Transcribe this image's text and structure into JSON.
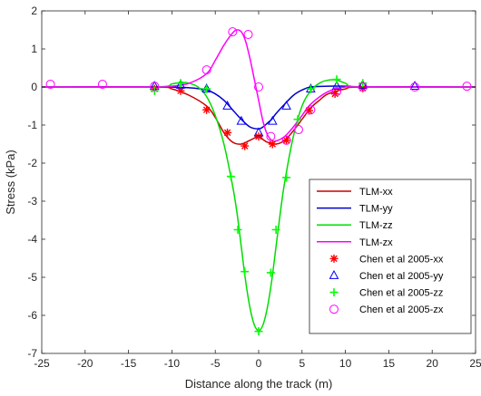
{
  "chart_data": {
    "type": "line",
    "title": "",
    "xlabel": "Distance along the track (m)",
    "ylabel": "Stress (kPa)",
    "xlim": [
      -25,
      25
    ],
    "ylim": [
      -7,
      2
    ],
    "xticks": [
      -25,
      -20,
      -15,
      -10,
      -5,
      0,
      5,
      10,
      15,
      20,
      25
    ],
    "yticks": [
      -7,
      -6,
      -5,
      -4,
      -3,
      -2,
      -1,
      0,
      1,
      2
    ],
    "grid": false,
    "legend_position": "bottom-right",
    "series": [
      {
        "name": "TLM-xx",
        "kind": "line",
        "color": "#cc0000",
        "x": [
          -25,
          -12,
          -10,
          -8,
          -6,
          -5,
          -4,
          -3,
          -2,
          -1,
          0,
          0.5,
          1,
          2,
          3,
          4,
          5,
          6,
          7,
          8,
          10,
          12,
          25
        ],
        "y": [
          0,
          0,
          -0.05,
          -0.22,
          -0.5,
          -0.8,
          -1.2,
          -1.45,
          -1.5,
          -1.4,
          -1.3,
          -1.38,
          -1.45,
          -1.5,
          -1.4,
          -1.15,
          -0.85,
          -0.55,
          -0.35,
          -0.18,
          -0.05,
          0,
          0
        ]
      },
      {
        "name": "TLM-yy",
        "kind": "line",
        "color": "#0000cc",
        "x": [
          -25,
          -12,
          -8,
          -6,
          -5,
          -4,
          -3,
          -2,
          -1,
          0,
          0.5,
          1,
          1.5,
          2,
          3,
          4,
          5,
          6,
          8,
          10,
          12,
          25
        ],
        "y": [
          0,
          0,
          -0.02,
          -0.08,
          -0.18,
          -0.35,
          -0.6,
          -0.85,
          -1.05,
          -1.1,
          -1.05,
          -0.95,
          -0.85,
          -0.7,
          -0.45,
          -0.22,
          -0.08,
          0,
          0.02,
          0.02,
          0,
          0
        ]
      },
      {
        "name": "TLM-zz",
        "kind": "line",
        "color": "#00dd00",
        "x": [
          -25,
          -12,
          -10,
          -9,
          -8,
          -7,
          -6,
          -5,
          -4,
          -3,
          -2.5,
          -2,
          -1.5,
          -1,
          -0.5,
          0,
          0.5,
          1,
          1.5,
          2,
          2.5,
          3,
          4,
          5,
          6,
          7,
          8,
          9,
          10,
          12,
          25
        ],
        "y": [
          0,
          0,
          0.08,
          0.12,
          0.1,
          0,
          -0.25,
          -0.75,
          -1.5,
          -2.6,
          -3.3,
          -4.2,
          -5.1,
          -5.8,
          -6.25,
          -6.4,
          -6.25,
          -5.8,
          -5.1,
          -4.2,
          -3.3,
          -2.5,
          -1.3,
          -0.5,
          -0.1,
          0.1,
          0.18,
          0.18,
          0.1,
          0,
          0
        ]
      },
      {
        "name": "TLM-zx",
        "kind": "line",
        "color": "#ff00ff",
        "x": [
          -25,
          -12,
          -10,
          -8,
          -6,
          -5,
          -4,
          -3,
          -2.5,
          -2,
          -1.5,
          -1,
          -0.5,
          0,
          0.5,
          1,
          1.5,
          2,
          3,
          4,
          5,
          6,
          8,
          10,
          12,
          25
        ],
        "y": [
          0,
          0,
          0.02,
          0.1,
          0.35,
          0.7,
          1.1,
          1.42,
          1.5,
          1.45,
          1.2,
          0.75,
          0.2,
          -0.35,
          -0.9,
          -1.25,
          -1.4,
          -1.42,
          -1.3,
          -1.05,
          -0.75,
          -0.45,
          -0.12,
          0,
          0,
          0
        ]
      },
      {
        "name": "Chen et al 2005-xx",
        "kind": "marker",
        "marker": "asterisk",
        "color": "#ff0000",
        "x": [
          -12,
          -9,
          -6,
          -3.6,
          -1.6,
          0,
          1.6,
          3.2,
          5.8,
          8.8,
          12
        ],
        "y": [
          -0.05,
          -0.1,
          -0.6,
          -1.2,
          -1.55,
          -1.3,
          -1.5,
          -1.4,
          -0.62,
          -0.18,
          -0.03
        ]
      },
      {
        "name": "Chen et al 2005-yy",
        "kind": "marker",
        "marker": "triangle",
        "color": "#0000ff",
        "x": [
          -12,
          -9,
          -6,
          -3.6,
          -2,
          0,
          1.6,
          3.2,
          6,
          9,
          12,
          18
        ],
        "y": [
          0.02,
          0.05,
          -0.05,
          -0.5,
          -0.9,
          -1.2,
          -0.9,
          -0.5,
          -0.05,
          0.02,
          0.05,
          0.02
        ]
      },
      {
        "name": "Chen et al 2005-zz",
        "kind": "marker",
        "marker": "plus",
        "color": "#00ff00",
        "x": [
          -12,
          -9,
          -6,
          -3.2,
          -2.4,
          -1.6,
          0,
          1.4,
          2,
          3.2,
          4.5,
          6,
          9,
          12
        ],
        "y": [
          -0.1,
          0.1,
          -0.05,
          -2.35,
          -3.75,
          -4.85,
          -6.42,
          -4.88,
          -3.75,
          -2.38,
          -0.85,
          -0.05,
          0.2,
          0.1
        ]
      },
      {
        "name": "Chen et al 2005-zx",
        "kind": "marker",
        "marker": "circle",
        "color": "#ff00ff",
        "x": [
          -24,
          -18,
          -12,
          -6,
          -3,
          -1.2,
          0,
          1.4,
          3.2,
          4.6,
          6,
          9,
          12,
          18,
          24
        ],
        "y": [
          0.07,
          0.07,
          0.02,
          0.45,
          1.45,
          1.38,
          0,
          -1.3,
          -1.4,
          -1.12,
          -0.6,
          -0.12,
          0,
          0,
          0.02
        ]
      }
    ]
  }
}
